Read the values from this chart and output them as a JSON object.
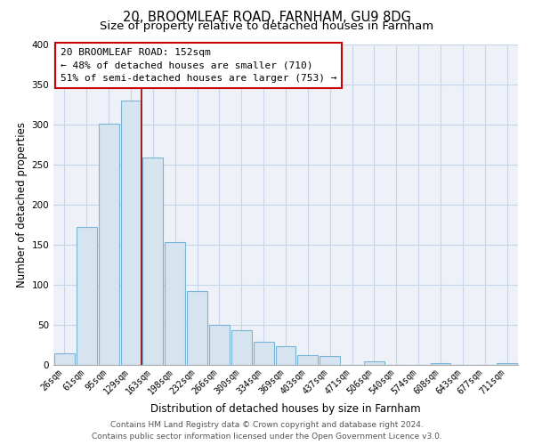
{
  "title": "20, BROOMLEAF ROAD, FARNHAM, GU9 8DG",
  "subtitle": "Size of property relative to detached houses in Farnham",
  "xlabel": "Distribution of detached houses by size in Farnham",
  "ylabel": "Number of detached properties",
  "bar_color": "#d6e4f0",
  "bar_edge_color": "#7ab4d4",
  "background_color": "#eef2f8",
  "grid_color": "#c8d4e8",
  "tick_labels": [
    "26sqm",
    "61sqm",
    "95sqm",
    "129sqm",
    "163sqm",
    "198sqm",
    "232sqm",
    "266sqm",
    "300sqm",
    "334sqm",
    "369sqm",
    "403sqm",
    "437sqm",
    "471sqm",
    "506sqm",
    "540sqm",
    "574sqm",
    "608sqm",
    "643sqm",
    "677sqm",
    "711sqm"
  ],
  "bar_heights": [
    15,
    172,
    301,
    330,
    259,
    153,
    92,
    50,
    43,
    29,
    23,
    12,
    11,
    0,
    4,
    0,
    0,
    2,
    0,
    0,
    2
  ],
  "vline_color": "#990000",
  "annotation_text": "20 BROOMLEAF ROAD: 152sqm\n← 48% of detached houses are smaller (710)\n51% of semi-detached houses are larger (753) →",
  "annotation_box_color": "white",
  "annotation_box_edge_color": "#cc0000",
  "ylim": [
    0,
    400
  ],
  "yticks": [
    0,
    50,
    100,
    150,
    200,
    250,
    300,
    350,
    400
  ],
  "footer_line1": "Contains HM Land Registry data © Crown copyright and database right 2024.",
  "footer_line2": "Contains public sector information licensed under the Open Government Licence v3.0.",
  "title_fontsize": 10.5,
  "subtitle_fontsize": 9.5,
  "axis_label_fontsize": 8.5,
  "tick_fontsize": 7,
  "annotation_fontsize": 8,
  "footer_fontsize": 6.5
}
